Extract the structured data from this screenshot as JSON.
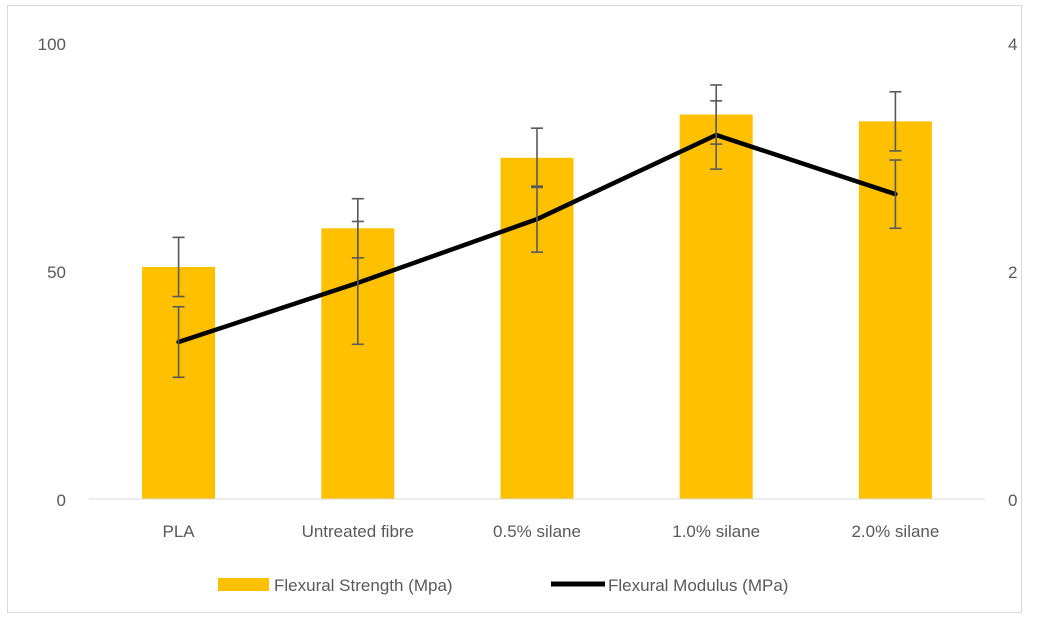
{
  "chart_data": {
    "type": "bar",
    "title": "",
    "categories": [
      "PLA",
      "Untreated fibre",
      "0.5% silane",
      "1.0% silane",
      "2.0% silane"
    ],
    "series": [
      {
        "name": "Flexural Strength (Mpa)",
        "type": "bar",
        "axis": "left",
        "color": "#FFC000",
        "values": [
          51,
          59.5,
          75,
          84.5,
          83
        ],
        "error": [
          6.5,
          6.5,
          6.5,
          6.5,
          6.5
        ]
      },
      {
        "name": "Flexural Modulus (MPa)",
        "type": "line",
        "axis": "right",
        "color": "#000000",
        "values": [
          1.38,
          1.9,
          2.46,
          3.2,
          2.68
        ],
        "error": [
          0.31,
          0.54,
          0.29,
          0.3,
          0.3
        ]
      }
    ],
    "y_left": {
      "ylim": [
        0,
        100
      ],
      "ticks": [
        "0",
        "50",
        "100"
      ]
    },
    "y_right": {
      "ylim": [
        0,
        4
      ],
      "ticks": [
        "0",
        "2",
        "4"
      ]
    },
    "grid": false,
    "legend_position": "bottom"
  }
}
